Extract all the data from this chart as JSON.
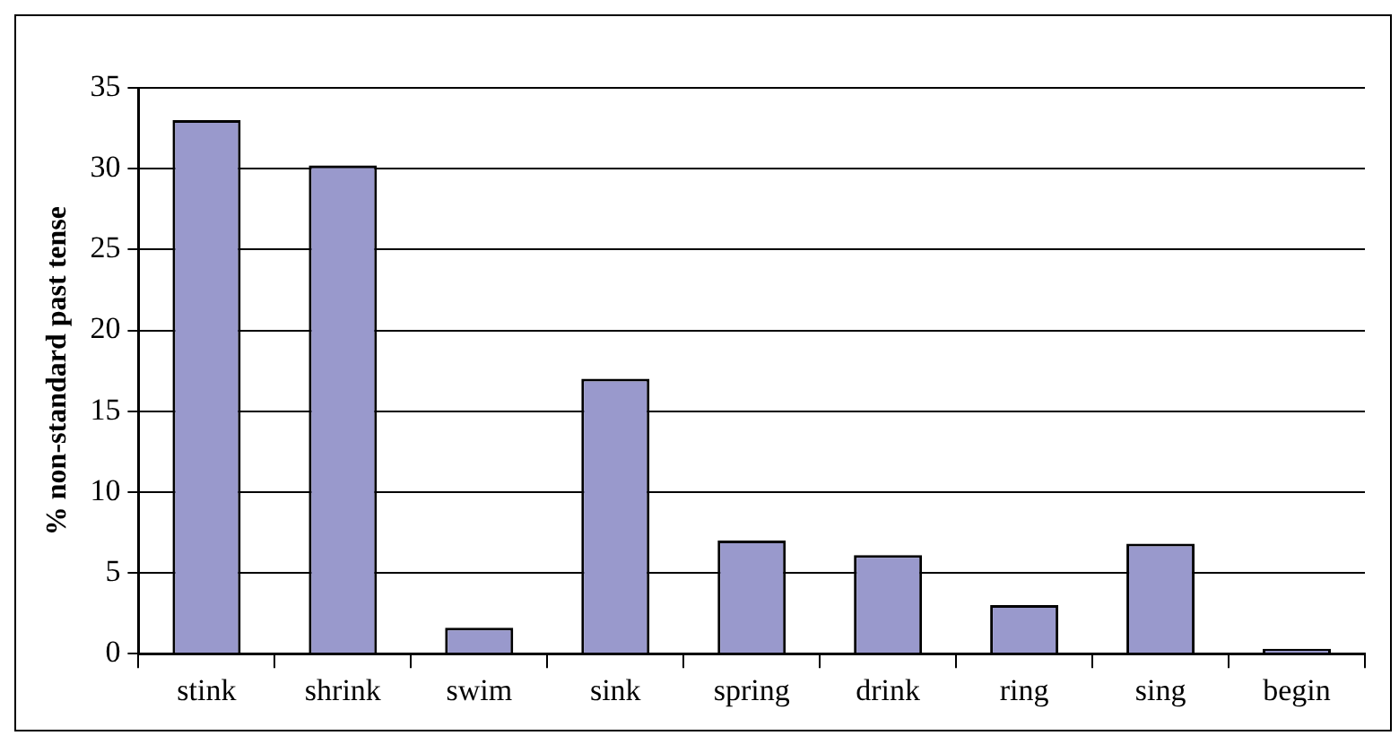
{
  "chart_data": {
    "type": "bar",
    "ylabel": "% non-standard past tense",
    "categories": [
      "stink",
      "shrink",
      "swim",
      "sink",
      "spring",
      "drink",
      "ring",
      "sing",
      "begin"
    ],
    "values": [
      33,
      30.2,
      1.6,
      17,
      7,
      6.1,
      3,
      6.8,
      0.3
    ],
    "color": "#9999cc",
    "ylim": [
      0,
      35
    ],
    "yticks": [
      0,
      5,
      10,
      15,
      20,
      25,
      30,
      35
    ],
    "grid": "y",
    "legend": false
  }
}
